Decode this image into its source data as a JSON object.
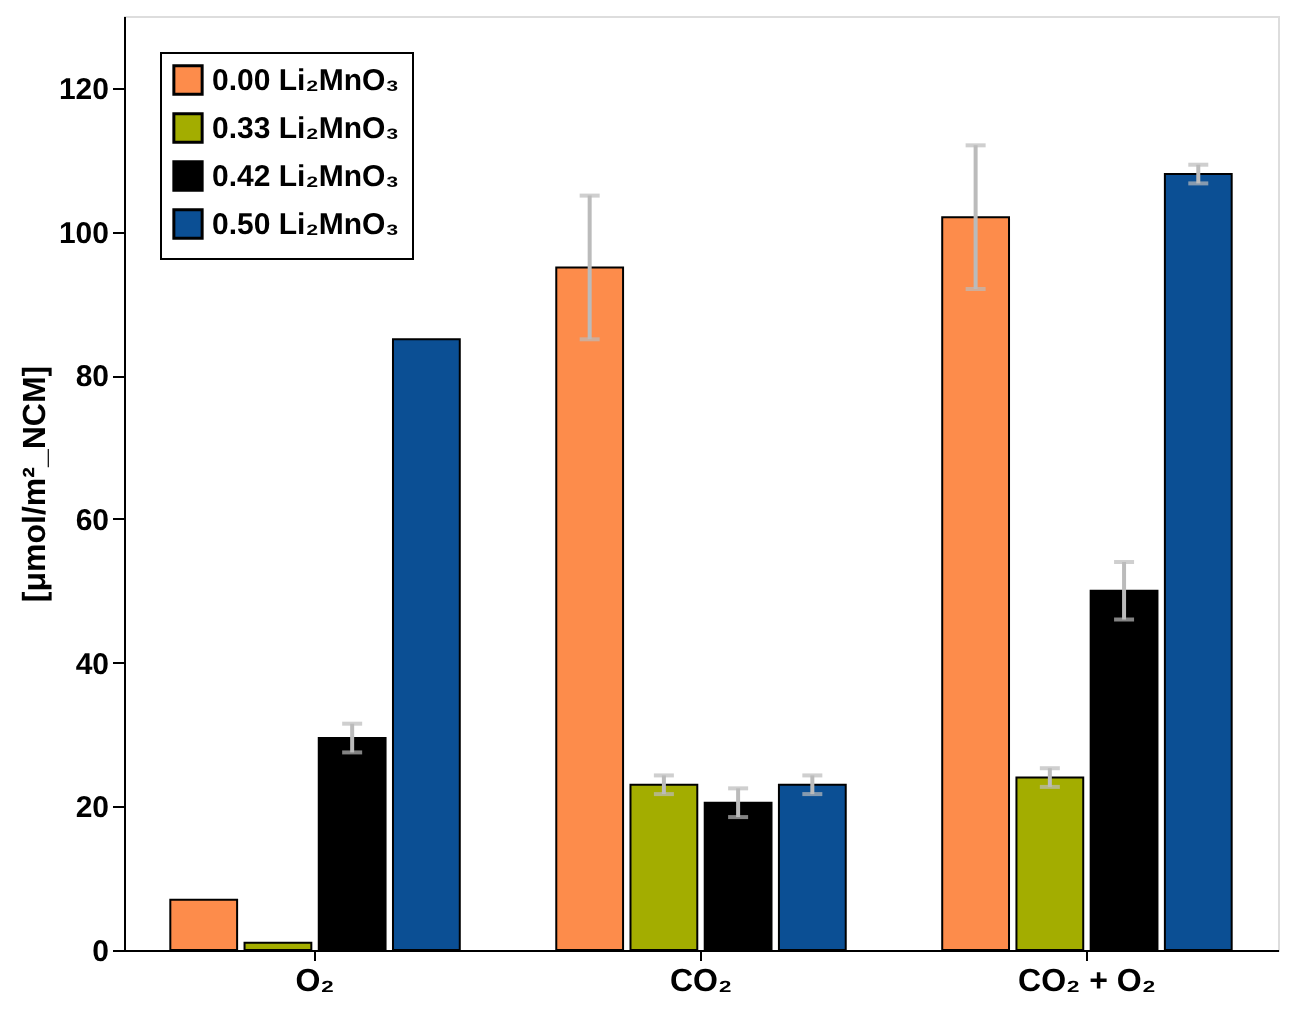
{
  "chart_data": {
    "type": "bar",
    "ylabel": "[μmol/m²_NCM]",
    "categories": [
      "O₂",
      "CO₂",
      "CO₂ + O₂"
    ],
    "series": [
      {
        "name": "0.00 Li₂MnO₃",
        "color": "#fd8c4b",
        "values": [
          7,
          95,
          102
        ],
        "errors": [
          null,
          10,
          10
        ]
      },
      {
        "name": "0.33 Li₂MnO₃",
        "color": "#a3ad00",
        "values": [
          1,
          23,
          24
        ],
        "errors": [
          null,
          1.3,
          1.3
        ]
      },
      {
        "name": "0.42 Li₂MnO₃",
        "color": "#000000",
        "values": [
          29.5,
          20.5,
          50
        ],
        "errors": [
          2,
          2,
          4
        ]
      },
      {
        "name": "0.50 Li₂MnO₃",
        "color": "#0b4f94",
        "values": [
          85,
          23,
          108
        ],
        "errors": [
          null,
          1.3,
          1.3
        ]
      }
    ],
    "ylim": [
      0,
      130
    ],
    "yticks": [
      0,
      20,
      40,
      60,
      80,
      100,
      120
    ],
    "grid": false,
    "legend": "top left"
  }
}
